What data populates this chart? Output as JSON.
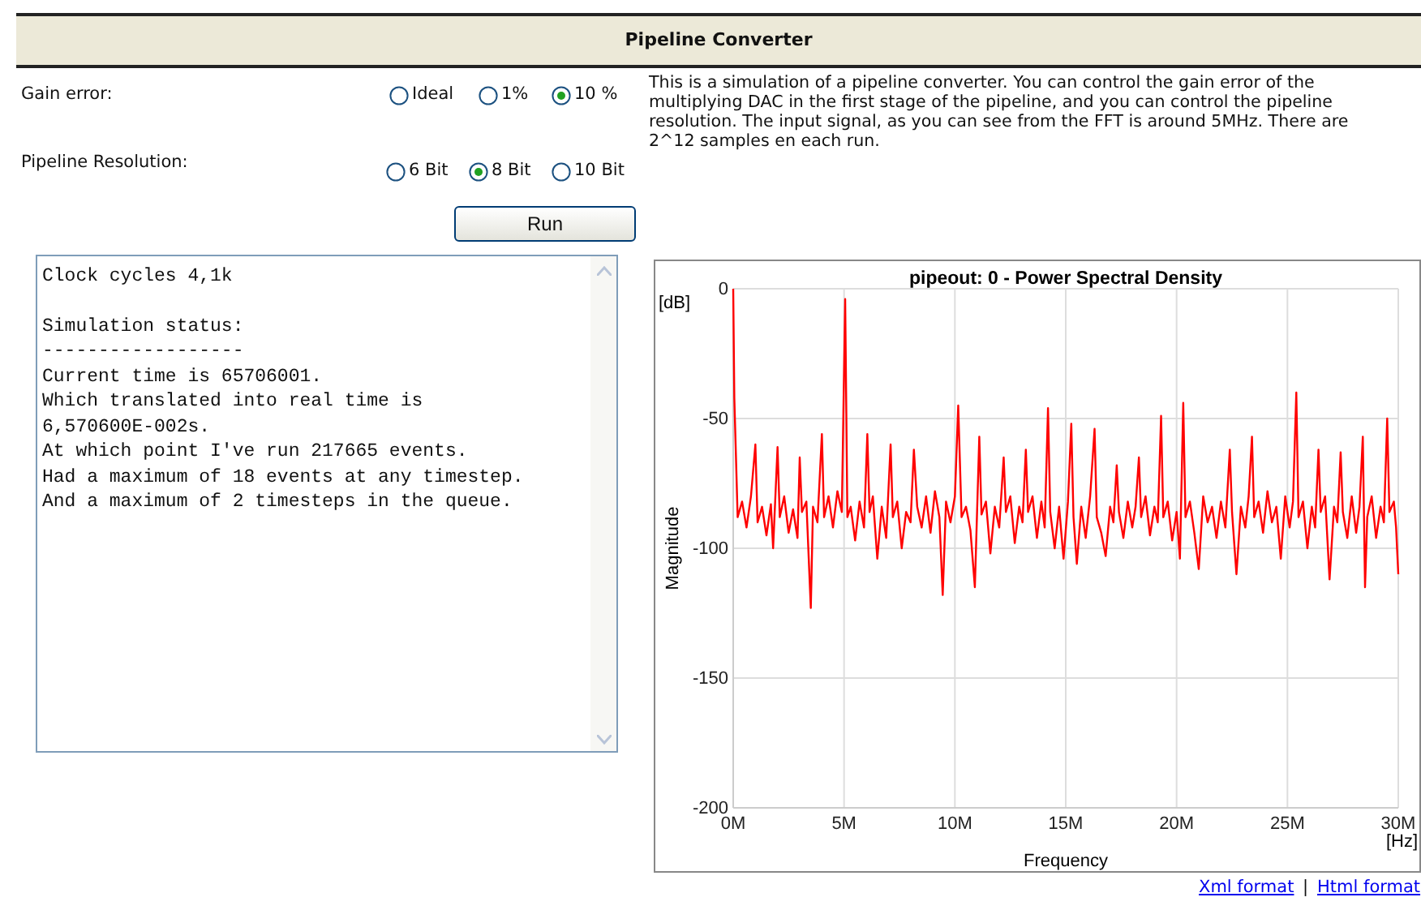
{
  "chart_data": [
    {
      "type": "other",
      "title": "Pipeline Converter",
      "annotations": [
        "Gain error:",
        "Ideal",
        "1%",
        "10 %",
        "Pipeline Resolution:",
        "6 Bit",
        "8 Bit",
        "10 Bit",
        "Run",
        "This is a simulation of a pipeline converter. You can control the gain error of the multiplying DAC in the first stage of the pipeline, and you can control the pipeline resolution. The input signal, as you can see from the FFT is around 5MHz. There are 2^12 samples en each run.",
        "Clock cycles 4,1k",
        "Simulation status:",
        "------------------",
        "Current time is 65706001.",
        "Which translated into real time is",
        "6,570600E-002s.",
        "At which point I've run 217665 events.",
        "Had a maximum of 18 events at any timestep.",
        "And a maximum of 2 timesteps in the queue.",
        "Xml format",
        "|",
        "Html format"
      ]
    },
    {
      "type": "line",
      "title": "pipeout: 0 - Power Spectral Density",
      "xlabel": "Frequency",
      "ylabel": "Magnitude",
      "annotations": [
        "[dB]",
        "[Hz]"
      ],
      "xlim": [
        0,
        30
      ],
      "xticks": [
        {
          "value": 0,
          "label": "0M"
        },
        {
          "value": 5,
          "label": "5M"
        },
        {
          "value": 10,
          "label": "10M"
        },
        {
          "value": 15,
          "label": "15M"
        },
        {
          "value": 20,
          "label": "20M"
        },
        {
          "value": 25,
          "label": "25M"
        },
        {
          "value": 30,
          "label": "30M"
        }
      ],
      "ylim": [
        -200,
        0
      ],
      "yticks": [
        0,
        -50,
        -100,
        -150,
        -200
      ],
      "grid": true,
      "marker": "none",
      "line_style": "solid",
      "series": [
        {
          "color": "#ff0000",
          "x": [
            0,
            0.05,
            0.2,
            0.4,
            0.6,
            0.8,
            1.0,
            1.1,
            1.3,
            1.5,
            1.7,
            1.8,
            2.0,
            2.1,
            2.3,
            2.5,
            2.7,
            2.9,
            3.0,
            3.1,
            3.3,
            3.5,
            3.6,
            3.8,
            4.0,
            4.1,
            4.3,
            4.5,
            4.7,
            4.9,
            5.05,
            5.15,
            5.3,
            5.5,
            5.7,
            5.9,
            6.05,
            6.15,
            6.3,
            6.5,
            6.7,
            6.9,
            7.1,
            7.2,
            7.4,
            7.6,
            7.8,
            8.0,
            8.15,
            8.3,
            8.5,
            8.7,
            8.9,
            9.1,
            9.3,
            9.45,
            9.6,
            9.8,
            10.0,
            10.15,
            10.3,
            10.5,
            10.7,
            10.9,
            11.1,
            11.2,
            11.4,
            11.6,
            11.8,
            12.0,
            12.2,
            12.3,
            12.5,
            12.7,
            12.9,
            13.05,
            13.2,
            13.3,
            13.5,
            13.7,
            13.9,
            14.05,
            14.2,
            14.3,
            14.5,
            14.7,
            14.9,
            15.1,
            15.25,
            15.35,
            15.5,
            15.7,
            15.9,
            16.1,
            16.3,
            16.4,
            16.6,
            16.8,
            17.0,
            17.15,
            17.3,
            17.4,
            17.6,
            17.8,
            18.0,
            18.15,
            18.3,
            18.4,
            18.6,
            18.8,
            19.0,
            19.15,
            19.3,
            19.4,
            19.6,
            19.8,
            20.0,
            20.15,
            20.3,
            20.4,
            20.6,
            20.8,
            21.0,
            21.2,
            21.4,
            21.6,
            21.8,
            22.0,
            22.2,
            22.4,
            22.5,
            22.7,
            22.9,
            23.1,
            23.25,
            23.4,
            23.5,
            23.7,
            23.9,
            24.1,
            24.3,
            24.5,
            24.7,
            24.9,
            25.1,
            25.25,
            25.4,
            25.5,
            25.7,
            25.9,
            26.1,
            26.25,
            26.4,
            26.5,
            26.7,
            26.9,
            27.1,
            27.25,
            27.4,
            27.5,
            27.7,
            27.9,
            28.1,
            28.25,
            28.4,
            28.5,
            28.6,
            28.8,
            29.0,
            29.2,
            29.35,
            29.5,
            29.6,
            29.8,
            29.9,
            30.0
          ],
          "values": [
            0,
            -42,
            -88,
            -82,
            -92,
            -80,
            -60,
            -90,
            -84,
            -95,
            -83,
            -100,
            -61,
            -88,
            -80,
            -94,
            -85,
            -96,
            -65,
            -86,
            -82,
            -123,
            -84,
            -90,
            -56,
            -88,
            -80,
            -92,
            -78,
            -86,
            -4,
            -88,
            -84,
            -97,
            -82,
            -92,
            -56,
            -86,
            -80,
            -104,
            -84,
            -96,
            -60,
            -88,
            -82,
            -100,
            -86,
            -90,
            -62,
            -84,
            -92,
            -80,
            -94,
            -78,
            -88,
            -118,
            -82,
            -90,
            -80,
            -45,
            -88,
            -84,
            -93,
            -115,
            -57,
            -87,
            -82,
            -102,
            -84,
            -92,
            -65,
            -86,
            -80,
            -98,
            -84,
            -90,
            -62,
            -86,
            -80,
            -96,
            -82,
            -92,
            -46,
            -86,
            -100,
            -84,
            -104,
            -82,
            -52,
            -88,
            -106,
            -84,
            -96,
            -80,
            -54,
            -88,
            -94,
            -103,
            -84,
            -90,
            -68,
            -86,
            -96,
            -82,
            -92,
            -84,
            -65,
            -88,
            -80,
            -95,
            -84,
            -90,
            -49,
            -88,
            -82,
            -97,
            -86,
            -104,
            -44,
            -88,
            -82,
            -94,
            -108,
            -80,
            -90,
            -84,
            -96,
            -82,
            -92,
            -62,
            -86,
            -110,
            -84,
            -92,
            -80,
            -57,
            -88,
            -82,
            -94,
            -78,
            -90,
            -84,
            -104,
            -80,
            -92,
            -82,
            -40,
            -88,
            -82,
            -100,
            -84,
            -92,
            -62,
            -86,
            -80,
            -112,
            -84,
            -90,
            -63,
            -86,
            -96,
            -80,
            -94,
            -84,
            -57,
            -115,
            -88,
            -80,
            -96,
            -84,
            -90,
            -50,
            -86,
            -82,
            -92,
            -110
          ]
        }
      ]
    }
  ]
}
